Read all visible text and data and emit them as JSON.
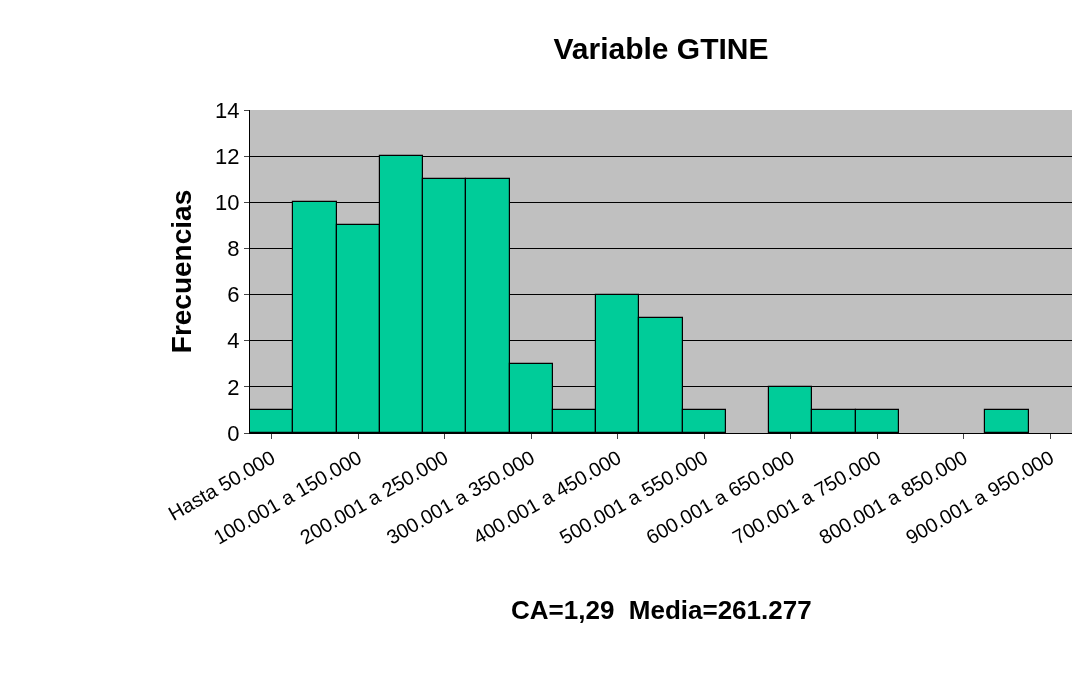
{
  "chart_data": {
    "type": "bar",
    "title": "Variable GTINE",
    "ylabel": "Frecuencias",
    "categories": [
      "Hasta 50.000",
      null,
      "100.001 a 150.000",
      null,
      "200.001 a 250.000",
      null,
      "300.001 a 350.000",
      null,
      "400.001 a 450.000",
      null,
      "500.001 a 550.000",
      null,
      "600.001 a 650.000",
      null,
      "700.001 a 750.000",
      null,
      "800.001 a 850.000",
      null,
      "900.001 a 950.000"
    ],
    "values": [
      1,
      10,
      9,
      12,
      11,
      11,
      3,
      1,
      6,
      5,
      1,
      0,
      2,
      1,
      1,
      0,
      0,
      1,
      0
    ],
    "color": "#00cc99",
    "ylim": [
      0,
      14
    ],
    "yticks": [
      0,
      2,
      4,
      6,
      8,
      10,
      12,
      14
    ],
    "grid": "y",
    "annotations": [
      "CA=1,29  Media=261.277"
    ]
  }
}
